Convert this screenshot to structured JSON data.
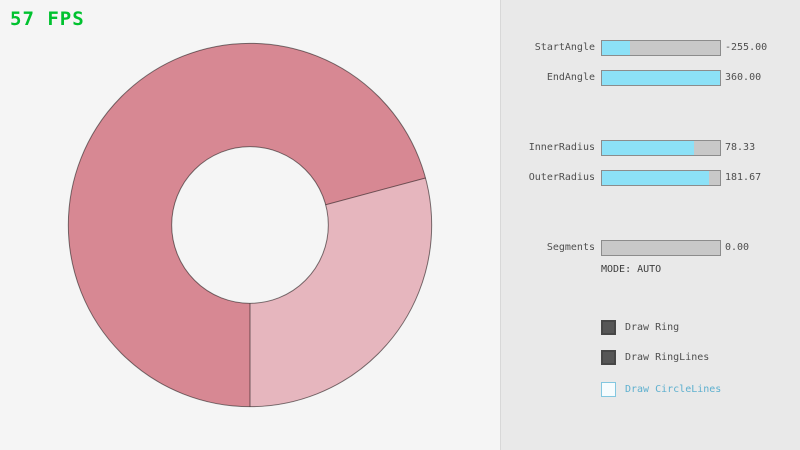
{
  "fps_label": "57 FPS",
  "colors": {
    "fps_green": "#00c22f",
    "background_left": "#f5f5f5",
    "background_panel": "#e9e9e9",
    "ring_overlap_pink": "#d78893",
    "ring_single_pink": "#e6b6be",
    "slider_fill_cyan": "#8ce1f7",
    "checkbox_checked_gray": "#565656",
    "circlelines_blue": "#5eb0cf"
  },
  "controls": {
    "sliders": [
      {
        "label": "StartAngle",
        "value": "-255.00",
        "fill_pct": 24
      },
      {
        "label": "EndAngle",
        "value": "360.00",
        "fill_pct": 100
      },
      {
        "label": "InnerRadius",
        "value": "78.33",
        "fill_pct": 78
      },
      {
        "label": "OuterRadius",
        "value": "181.67",
        "fill_pct": 91
      },
      {
        "label": "Segments",
        "value": "0.00",
        "fill_pct": 0
      }
    ],
    "mode_label": "MODE: AUTO",
    "checkboxes": [
      {
        "label": "Draw Ring",
        "checked": true
      },
      {
        "label": "Draw RingLines",
        "checked": true
      },
      {
        "label": "Draw CircleLines",
        "checked": false
      }
    ]
  }
}
